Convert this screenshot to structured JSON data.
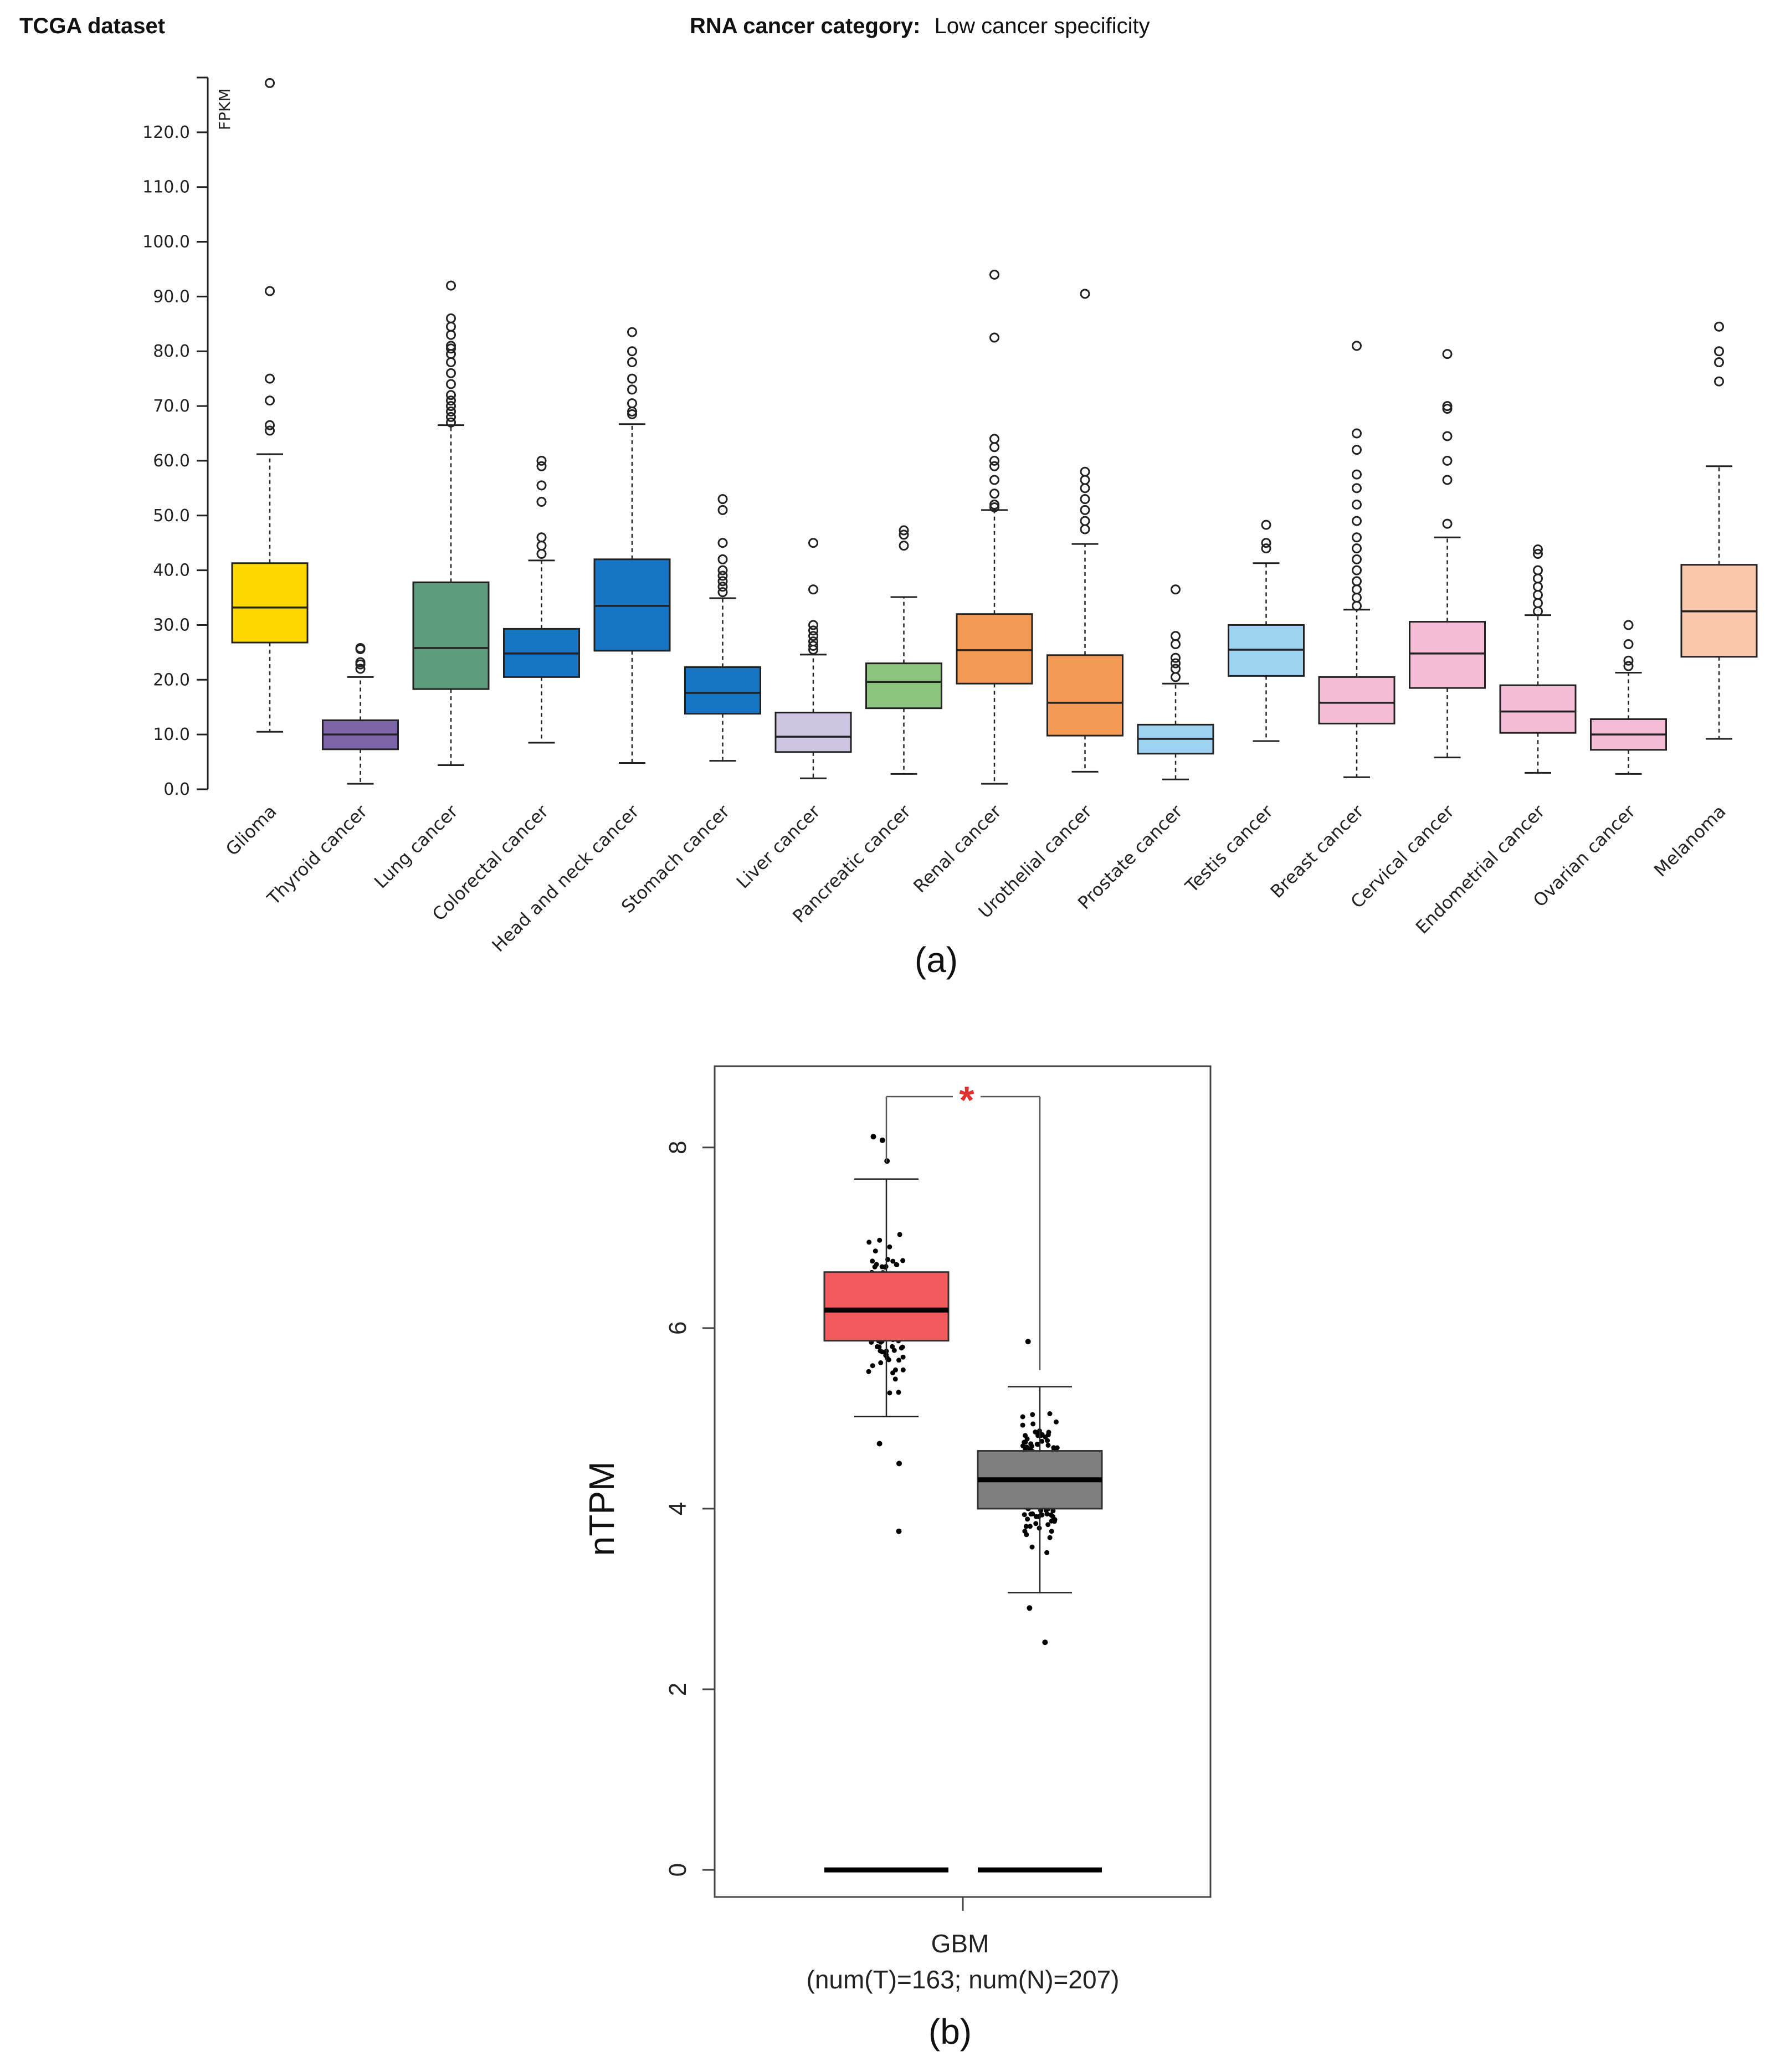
{
  "header": {
    "dataset_label": "TCGA dataset",
    "category_label": "RNA cancer category:",
    "category_value": "Low cancer specificity"
  },
  "chart_data": [
    {
      "panel": "(a)",
      "type": "box",
      "ylabel": "FPKM",
      "ylim": [
        0,
        130
      ],
      "yticks": [
        "0.0",
        "10.0",
        "20.0",
        "30.0",
        "40.0",
        "50.0",
        "60.0",
        "70.0",
        "80.0",
        "90.0",
        "100.0",
        "110.0",
        "120.0"
      ],
      "ytick_values": [
        0,
        10,
        20,
        30,
        40,
        50,
        60,
        70,
        80,
        90,
        100,
        110,
        120
      ],
      "series": [
        {
          "name": "Glioma",
          "color": "#FFD700",
          "min": 10.5,
          "q1": 26.8,
          "median": 33.2,
          "q3": 41.3,
          "max": 61.2,
          "outliers": [
            65.5,
            66.5,
            71,
            75,
            91,
            129
          ]
        },
        {
          "name": "Thyroid cancer",
          "color": "#7B65A8",
          "min": 1,
          "q1": 7.3,
          "median": 10,
          "q3": 12.6,
          "max": 20.5,
          "outliers": [
            22,
            22.8,
            23.2,
            25.6,
            25.8
          ]
        },
        {
          "name": "Lung cancer",
          "color": "#5E9C7E",
          "min": 4.4,
          "q1": 18.3,
          "median": 25.8,
          "q3": 37.8,
          "max": 66.5,
          "outliers": [
            67,
            68,
            69,
            70,
            71,
            72,
            74,
            76,
            78,
            79.5,
            80.5,
            81,
            83,
            84.5,
            86,
            92
          ]
        },
        {
          "name": "Colorectal cancer",
          "color": "#1875C4",
          "min": 8.5,
          "q1": 20.5,
          "median": 24.8,
          "q3": 29.3,
          "max": 41.8,
          "outliers": [
            43,
            44.5,
            46,
            52.5,
            55.5,
            59,
            60
          ]
        },
        {
          "name": "Head and neck cancer",
          "color": "#1875C4",
          "min": 4.8,
          "q1": 25.3,
          "median": 33.5,
          "q3": 42,
          "max": 66.7,
          "outliers": [
            68.5,
            69,
            70.5,
            73,
            75,
            78,
            80,
            83.5
          ]
        },
        {
          "name": "Stomach cancer",
          "color": "#1875C4",
          "min": 5.2,
          "q1": 13.8,
          "median": 17.6,
          "q3": 22.3,
          "max": 34.9,
          "outliers": [
            36,
            37,
            38,
            39,
            40,
            42,
            45,
            51,
            53
          ]
        },
        {
          "name": "Liver cancer",
          "color": "#CDC6E3",
          "min": 2,
          "q1": 6.8,
          "median": 9.6,
          "q3": 14,
          "max": 24.6,
          "outliers": [
            25.5,
            26.2,
            27,
            28,
            29,
            30,
            36.5,
            45
          ]
        },
        {
          "name": "Pancreatic cancer",
          "color": "#8CC47E",
          "min": 2.8,
          "q1": 14.8,
          "median": 19.6,
          "q3": 23,
          "max": 35.1,
          "outliers": [
            44.5,
            46.5,
            47.3
          ]
        },
        {
          "name": "Renal cancer",
          "color": "#F49A54",
          "min": 1,
          "q1": 19.3,
          "median": 25.4,
          "q3": 32,
          "max": 51,
          "outliers": [
            51.5,
            52,
            54,
            56.5,
            59,
            60,
            62.5,
            64,
            82.5,
            94
          ]
        },
        {
          "name": "Urothelial cancer",
          "color": "#F49A54",
          "min": 3.2,
          "q1": 9.8,
          "median": 15.8,
          "q3": 24.5,
          "max": 44.8,
          "outliers": [
            47.5,
            49,
            51,
            53,
            55,
            56.5,
            58,
            90.5
          ]
        },
        {
          "name": "Prostate cancer",
          "color": "#9ED2F2",
          "min": 1.8,
          "q1": 6.5,
          "median": 9.2,
          "q3": 11.8,
          "max": 19.3,
          "outliers": [
            20.5,
            22,
            23,
            24,
            26.5,
            28,
            36.5
          ]
        },
        {
          "name": "Testis cancer",
          "color": "#9ED2F2",
          "min": 8.8,
          "q1": 20.7,
          "median": 25.5,
          "q3": 30,
          "max": 41.3,
          "outliers": [
            44,
            45,
            48.3
          ]
        },
        {
          "name": "Breast cancer",
          "color": "#F5BCD6",
          "min": 2.2,
          "q1": 12,
          "median": 15.8,
          "q3": 20.5,
          "max": 32.8,
          "outliers": [
            33.5,
            35,
            36.5,
            38,
            40,
            42,
            44,
            46,
            49,
            52,
            55,
            57.5,
            62,
            65,
            81
          ]
        },
        {
          "name": "Cervical cancer",
          "color": "#F5BCD6",
          "min": 5.8,
          "q1": 18.5,
          "median": 24.8,
          "q3": 30.6,
          "max": 46,
          "outliers": [
            48.5,
            56.5,
            60,
            64.5,
            69.5,
            70,
            79.5
          ]
        },
        {
          "name": "Endometrial cancer",
          "color": "#F5BCD6",
          "min": 3,
          "q1": 10.3,
          "median": 14.2,
          "q3": 19,
          "max": 31.8,
          "outliers": [
            32.5,
            34,
            35.5,
            37,
            38.5,
            40,
            43,
            43.8
          ]
        },
        {
          "name": "Ovarian cancer",
          "color": "#F5BCD6",
          "min": 2.8,
          "q1": 7.2,
          "median": 10,
          "q3": 12.8,
          "max": 21.3,
          "outliers": [
            22.5,
            23.5,
            26.5,
            30
          ]
        },
        {
          "name": "Melanoma",
          "color": "#F9C7AC",
          "min": 9.2,
          "q1": 24.2,
          "median": 32.5,
          "q3": 41,
          "max": 59,
          "outliers": [
            74.5,
            78,
            80,
            84.5
          ]
        }
      ]
    },
    {
      "panel": "(b)",
      "type": "box",
      "ylabel": "nTPM",
      "ylim": [
        -0.3,
        8.9
      ],
      "yticks": [
        "0",
        "2",
        "4",
        "6",
        "8"
      ],
      "ytick_values": [
        0,
        2,
        4,
        6,
        8
      ],
      "xlabel": "GBM",
      "xlabel_sub": "(num(T)=163; num(N)=207)",
      "significance": "*",
      "series": [
        {
          "group": "T",
          "color": "#F25A5C",
          "n": 163,
          "min": 5.02,
          "q1": 5.86,
          "median": 6.2,
          "q3": 6.62,
          "max": 7.65,
          "outliers": [
            8.08,
            8.12,
            7.85,
            4.72,
            4.5,
            3.75
          ]
        },
        {
          "group": "N",
          "color": "#7F7F7F",
          "n": 207,
          "min": 3.07,
          "q1": 4.0,
          "median": 4.32,
          "q3": 4.64,
          "max": 5.35,
          "outliers": [
            5.85,
            2.9,
            2.52
          ]
        }
      ],
      "zero_lines": [
        0,
        0
      ]
    }
  ]
}
